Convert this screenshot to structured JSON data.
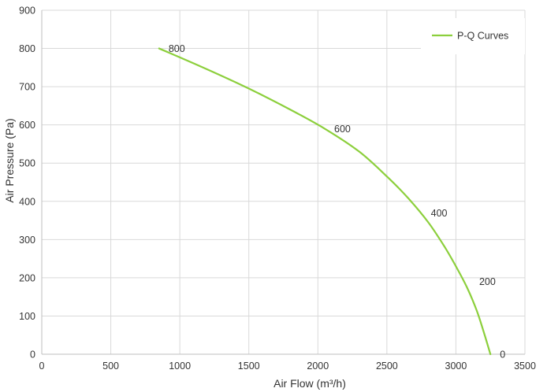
{
  "chart_data": {
    "type": "line",
    "title": "",
    "xlabel": "Air Flow  (m³/h)",
    "ylabel": "Air Pressure  (Pa)",
    "xlim": [
      0,
      3500
    ],
    "ylim": [
      0,
      900
    ],
    "x_ticks": [
      "0",
      "500",
      "1000",
      "1500",
      "2000",
      "2500",
      "3000",
      "3500"
    ],
    "y_ticks": [
      "0",
      "100",
      "200",
      "300",
      "400",
      "500",
      "600",
      "700",
      "800",
      "900"
    ],
    "grid": true,
    "legend_position": "top-right",
    "series": [
      {
        "name": "P-Q Curves",
        "color": "#8ccf3c",
        "x": [
          850,
          1200,
          1500,
          1800,
          2050,
          2300,
          2500,
          2650,
          2800,
          2920,
          3000,
          3080,
          3150,
          3200,
          3250
        ],
        "y": [
          800,
          745,
          695,
          640,
          590,
          530,
          465,
          410,
          345,
          280,
          230,
          175,
          115,
          60,
          0
        ]
      }
    ],
    "point_labels": [
      {
        "x": 850,
        "y": 800,
        "text": "800"
      },
      {
        "x": 2050,
        "y": 590,
        "text": "600"
      },
      {
        "x": 2750,
        "y": 370,
        "text": "400"
      },
      {
        "x": 3100,
        "y": 190,
        "text": "200"
      },
      {
        "x": 3250,
        "y": 0,
        "text": "0"
      }
    ]
  }
}
